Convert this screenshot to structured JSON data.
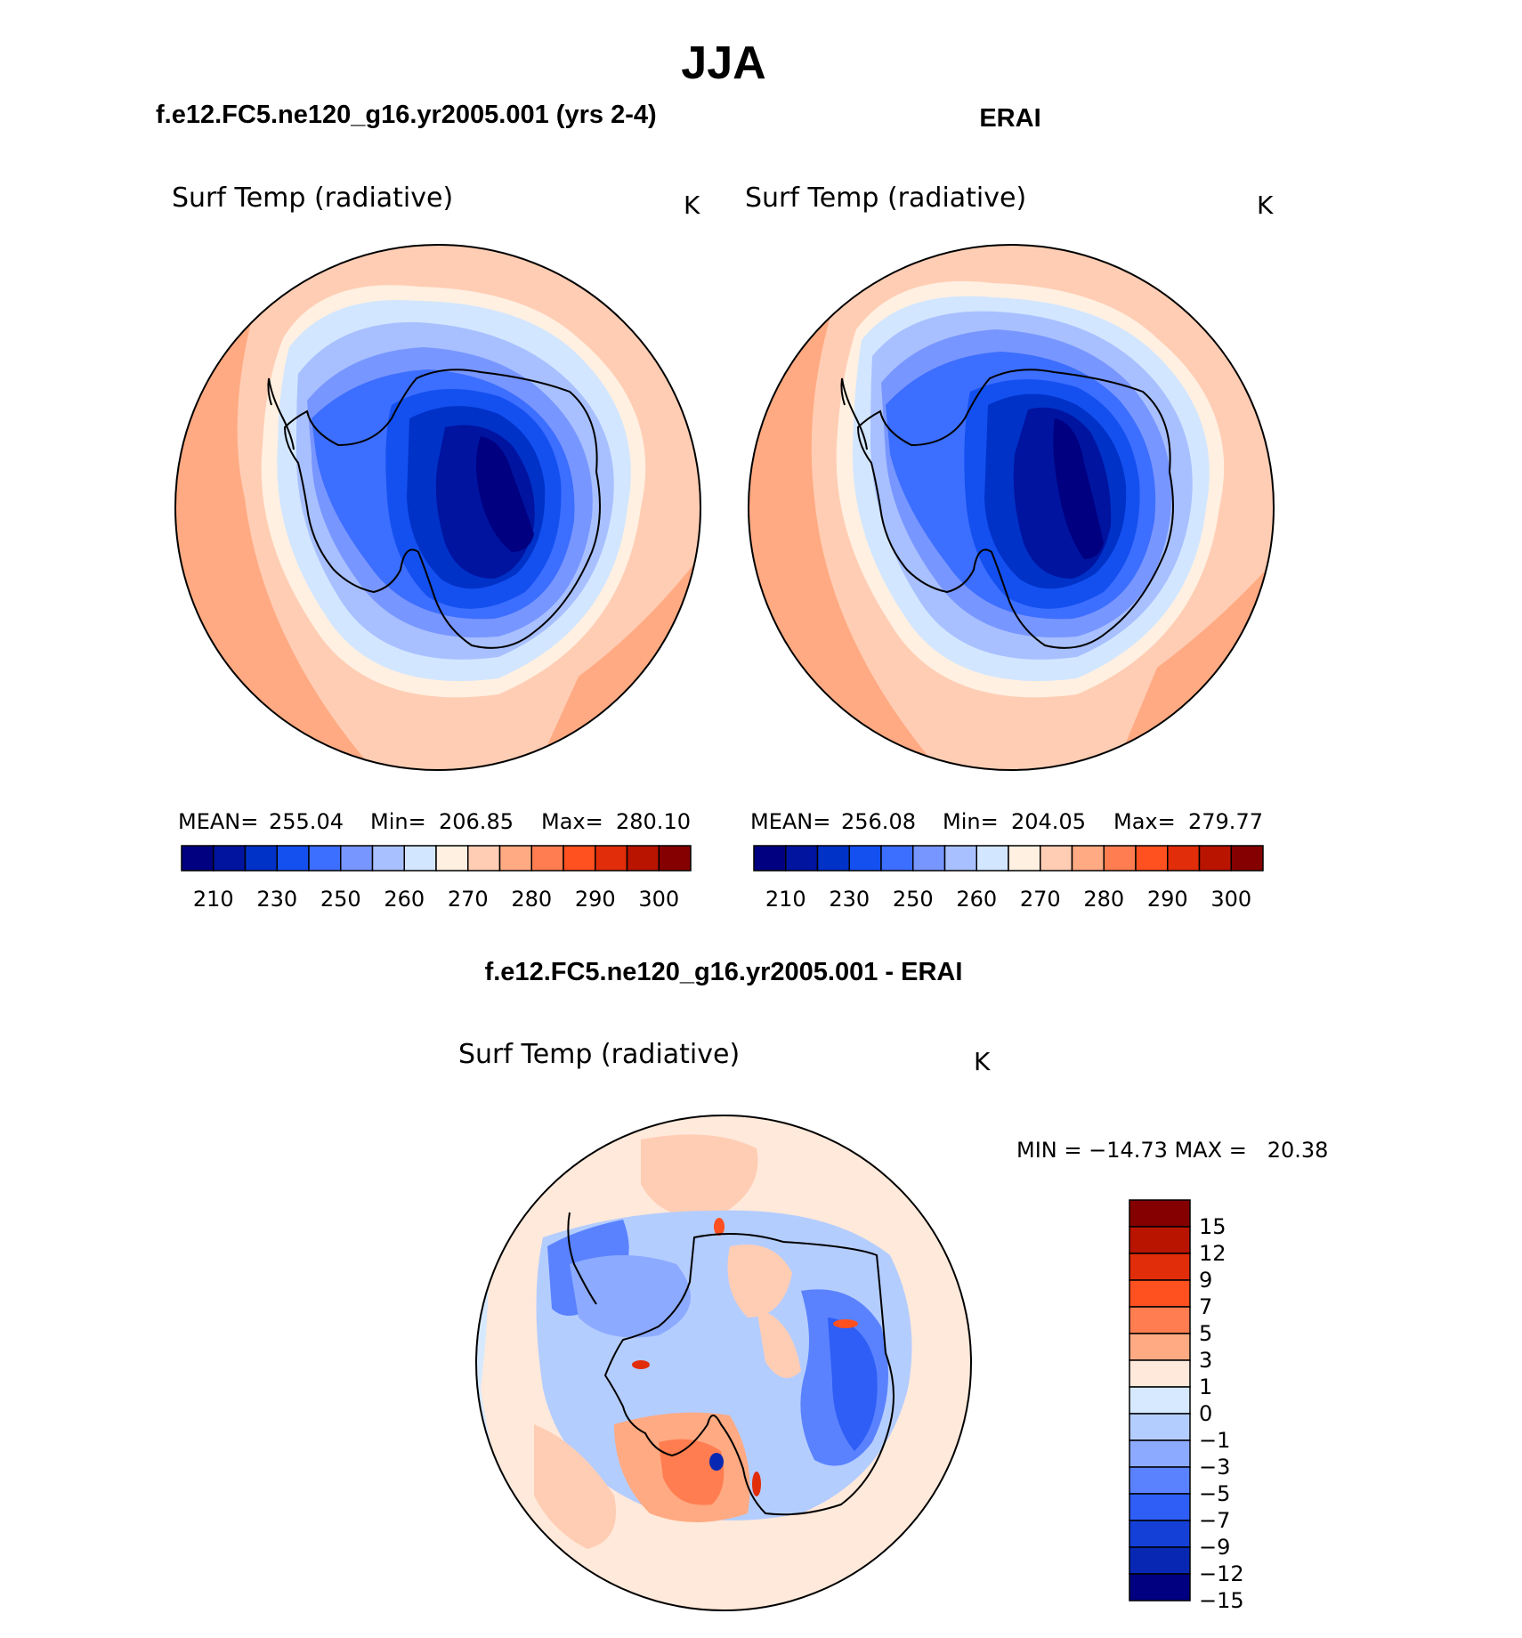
{
  "figure_title": "JJA",
  "colors": {
    "abs_scale": [
      "#000080",
      "#0014a0",
      "#0032c8",
      "#1450f0",
      "#3c6eff",
      "#7896ff",
      "#a8c0ff",
      "#d2e6ff",
      "#fff0e1",
      "#ffcdb4",
      "#ffaa82",
      "#ff7d50",
      "#ff5020",
      "#e12d0a",
      "#b91400",
      "#850000"
    ],
    "diff_scale": [
      "#850000",
      "#b91400",
      "#e12d0a",
      "#ff5020",
      "#ff7d50",
      "#ffaa82",
      "#ffe9da",
      "#d6e9ff",
      "#b4cdff",
      "#8caaff",
      "#5a82ff",
      "#2e5ef5",
      "#1440d8",
      "#0828b4",
      "#000080"
    ]
  },
  "panels": {
    "model": {
      "case_title": "f.e12.FC5.ne120_g16.yr2005.001 (yrs 2-4)",
      "variable": "Surf Temp (radiative)",
      "units": "K",
      "stats": {
        "mean_label": "MEAN=",
        "mean": "255.04",
        "min_label": "Min=",
        "min": "206.85",
        "max_label": "Max=",
        "max": "280.10"
      }
    },
    "obs": {
      "case_title": "ERAI",
      "variable": "Surf Temp (radiative)",
      "units": "K",
      "stats": {
        "mean_label": "MEAN=",
        "mean": "256.08",
        "min_label": "Min=",
        "min": "204.05",
        "max_label": "Max=",
        "max": "279.77"
      }
    },
    "diff": {
      "case_title": "f.e12.FC5.ne120_g16.yr2005.001 - ERAI",
      "variable": "Surf Temp (radiative)",
      "units": "K",
      "stats_text": "MIN = −14.73 MAX =   20.38"
    }
  },
  "colorbars": {
    "abs_ticks": [
      "210",
      "230",
      "250",
      "260",
      "270",
      "280",
      "290",
      "300"
    ],
    "diff_ticks": [
      "15",
      "12",
      "9",
      "7",
      "5",
      "3",
      "1",
      "0",
      "−1",
      "−3",
      "−5",
      "−7",
      "−9",
      "−12",
      "−15"
    ]
  }
}
